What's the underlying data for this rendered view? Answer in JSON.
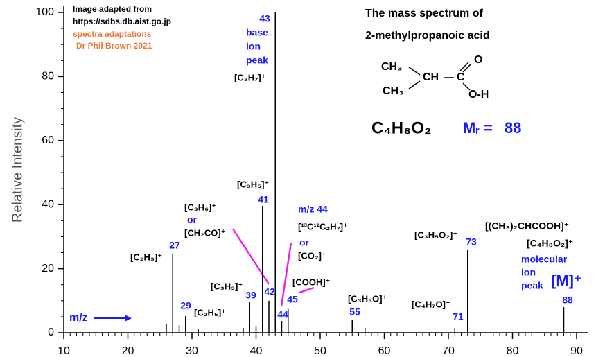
{
  "chart_data": {
    "type": "bar",
    "y_label": "Relative Intensity",
    "x": [
      26,
      27,
      28,
      29,
      31,
      38,
      39,
      40,
      41,
      42,
      43,
      44,
      45,
      55,
      57,
      71,
      73,
      88
    ],
    "values": [
      2.6,
      24.7,
      2.3,
      5.2,
      1,
      1.5,
      9.5,
      2,
      39.6,
      10,
      100,
      3.7,
      7.4,
      3.9,
      1.5,
      1.5,
      26,
      8
    ],
    "color": "#000000",
    "xlim": [
      10,
      90
    ],
    "xticks": [
      10,
      20,
      30,
      40,
      50,
      60,
      70,
      80,
      90
    ],
    "ylim": [
      0,
      100
    ],
    "yticks": [
      0,
      20,
      40,
      60,
      80,
      100
    ],
    "annotations": [
      {
        "text": "Image adapted from",
        "color": "#000000"
      },
      {
        "text": "https://sdbs.db.aist.go.jp",
        "color": "#000000"
      },
      {
        "text": "spectra adaptations",
        "color": "#e87a3c"
      },
      {
        "text": "Dr Phil Brown 2021",
        "color": "#e87a3c"
      },
      {
        "text": "The mass spectrum of",
        "color": "#000000"
      },
      {
        "text": "2-methylpropanoic acid",
        "color": "#000000"
      },
      {
        "text": "CH₃",
        "color": "#000000"
      },
      {
        "text": "CH",
        "color": "#000000"
      },
      {
        "text": "C",
        "color": "#000000"
      },
      {
        "text": "O",
        "color": "#000000"
      },
      {
        "text": "CH₃",
        "color": "#000000"
      },
      {
        "text": "O-H",
        "color": "#000000"
      },
      {
        "text": "C₄H₈O₂",
        "color": "#000000"
      },
      {
        "text": "Mᵣ =",
        "color": "#1a1aff"
      },
      {
        "text": "88",
        "color": "#1a1aff"
      },
      {
        "text": "43",
        "color": "#1a1aff"
      },
      {
        "text": "base",
        "color": "#1a1aff"
      },
      {
        "text": "ion",
        "color": "#1a1aff"
      },
      {
        "text": "peak",
        "color": "#1a1aff"
      },
      {
        "text": "[C₃H₇]⁺",
        "color": "#000000"
      },
      {
        "text": "[C₃H₅]⁺",
        "color": "#000000"
      },
      {
        "text": "41",
        "color": "#1a1aff"
      },
      {
        "text": "[C₃H₆]⁺",
        "color": "#000000"
      },
      {
        "text": "or",
        "color": "#1a1aff"
      },
      {
        "text": "[CH₂CO]⁺",
        "color": "#000000"
      },
      {
        "text": "m/z 44",
        "color": "#1a1aff"
      },
      {
        "text": "[¹³C¹²C₂H₇]⁺",
        "color": "#000000"
      },
      {
        "text": "or",
        "color": "#1a1aff"
      },
      {
        "text": "[CO₂]⁺",
        "color": "#000000"
      },
      {
        "text": "[COOH]⁺",
        "color": "#000000"
      },
      {
        "text": "45",
        "color": "#1a1aff"
      },
      {
        "text": "42",
        "color": "#1a1aff"
      },
      {
        "text": "44",
        "color": "#1a1aff"
      },
      {
        "text": "[C₂H₃]⁺",
        "color": "#000000"
      },
      {
        "text": "27",
        "color": "#1a1aff"
      },
      {
        "text": "[C₃H₃]⁺",
        "color": "#000000"
      },
      {
        "text": "39",
        "color": "#1a1aff"
      },
      {
        "text": "29",
        "color": "#1a1aff"
      },
      {
        "text": "[C₂H₅]⁺",
        "color": "#000000"
      },
      {
        "text": "[C₃H₃O]⁺",
        "color": "#000000"
      },
      {
        "text": "55",
        "color": "#1a1aff"
      },
      {
        "text": "[C₄H₇O]⁺",
        "color": "#000000"
      },
      {
        "text": "71",
        "color": "#1a1aff"
      },
      {
        "text": "[C₃H₅O₂]⁺",
        "color": "#000000"
      },
      {
        "text": "73",
        "color": "#1a1aff"
      },
      {
        "text": "[(CH₃)₂CHCOOH]⁺",
        "color": "#000000"
      },
      {
        "text": "[C₄H₈O₂]⁺",
        "color": "#000000"
      },
      {
        "text": "molecular",
        "color": "#1a1aff"
      },
      {
        "text": "ion",
        "color": "#1a1aff"
      },
      {
        "text": "peak",
        "color": "#1a1aff"
      },
      {
        "text": "[M]⁺",
        "color": "#1a1aff"
      },
      {
        "text": "88",
        "color": "#1a1aff"
      },
      {
        "text": "m/z",
        "color": "#1a1aff"
      }
    ]
  }
}
